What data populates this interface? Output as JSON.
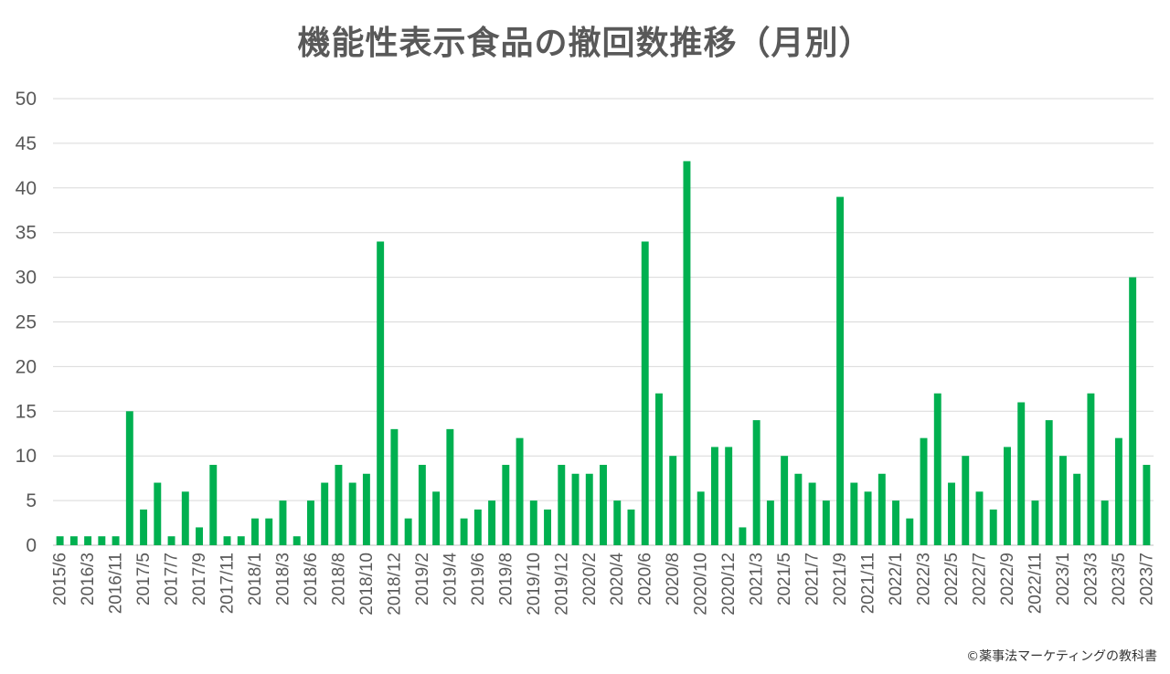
{
  "chart_data": {
    "type": "bar",
    "title": "機能性表示食品の撤回数推移（月別）",
    "xlabel": "",
    "ylabel": "",
    "ylim": [
      0,
      50
    ],
    "yticks": [
      0,
      5,
      10,
      15,
      20,
      25,
      30,
      35,
      40,
      45,
      50
    ],
    "grid": true,
    "bar_color": "#00b050",
    "categories": [
      "2015/6",
      "",
      "2016/3",
      "",
      "2016/11",
      "",
      "2017/5",
      "",
      "2017/7",
      "",
      "2017/9",
      "",
      "2017/11",
      "",
      "2018/1",
      "",
      "2018/3",
      "",
      "2018/6",
      "",
      "2018/8",
      "",
      "2018/10",
      "",
      "2018/12",
      "",
      "2019/2",
      "",
      "2019/4",
      "",
      "2019/6",
      "",
      "2019/8",
      "",
      "2019/10",
      "",
      "2019/12",
      "",
      "2020/2",
      "",
      "2020/4",
      "",
      "2020/6",
      "",
      "2020/8",
      "",
      "2020/10",
      "",
      "2020/12",
      "",
      "2021/3",
      "",
      "2021/5",
      "",
      "2021/7",
      "",
      "2021/9",
      "",
      "2021/11",
      "",
      "2022/1",
      "",
      "2022/3",
      "",
      "2022/5",
      "",
      "2022/7",
      "",
      "2022/9",
      "",
      "2022/11",
      "",
      "2023/1",
      "",
      "2023/3",
      "",
      "2023/5",
      "",
      "2023/7"
    ],
    "values": [
      1,
      1,
      1,
      1,
      1,
      15,
      4,
      7,
      1,
      6,
      2,
      9,
      1,
      1,
      3,
      3,
      5,
      1,
      5,
      7,
      9,
      7,
      8,
      34,
      13,
      3,
      9,
      6,
      13,
      3,
      4,
      5,
      9,
      12,
      5,
      4,
      9,
      8,
      8,
      9,
      5,
      4,
      34,
      17,
      10,
      43,
      6,
      11,
      11,
      2,
      14,
      5,
      10,
      8,
      7,
      5,
      39,
      7,
      6,
      8,
      5,
      3,
      12,
      17,
      7,
      10,
      6,
      4,
      11,
      16,
      5,
      14,
      10,
      8,
      17,
      5,
      12,
      30,
      9
    ]
  },
  "credit": "©薬事法マーケティングの教科書"
}
